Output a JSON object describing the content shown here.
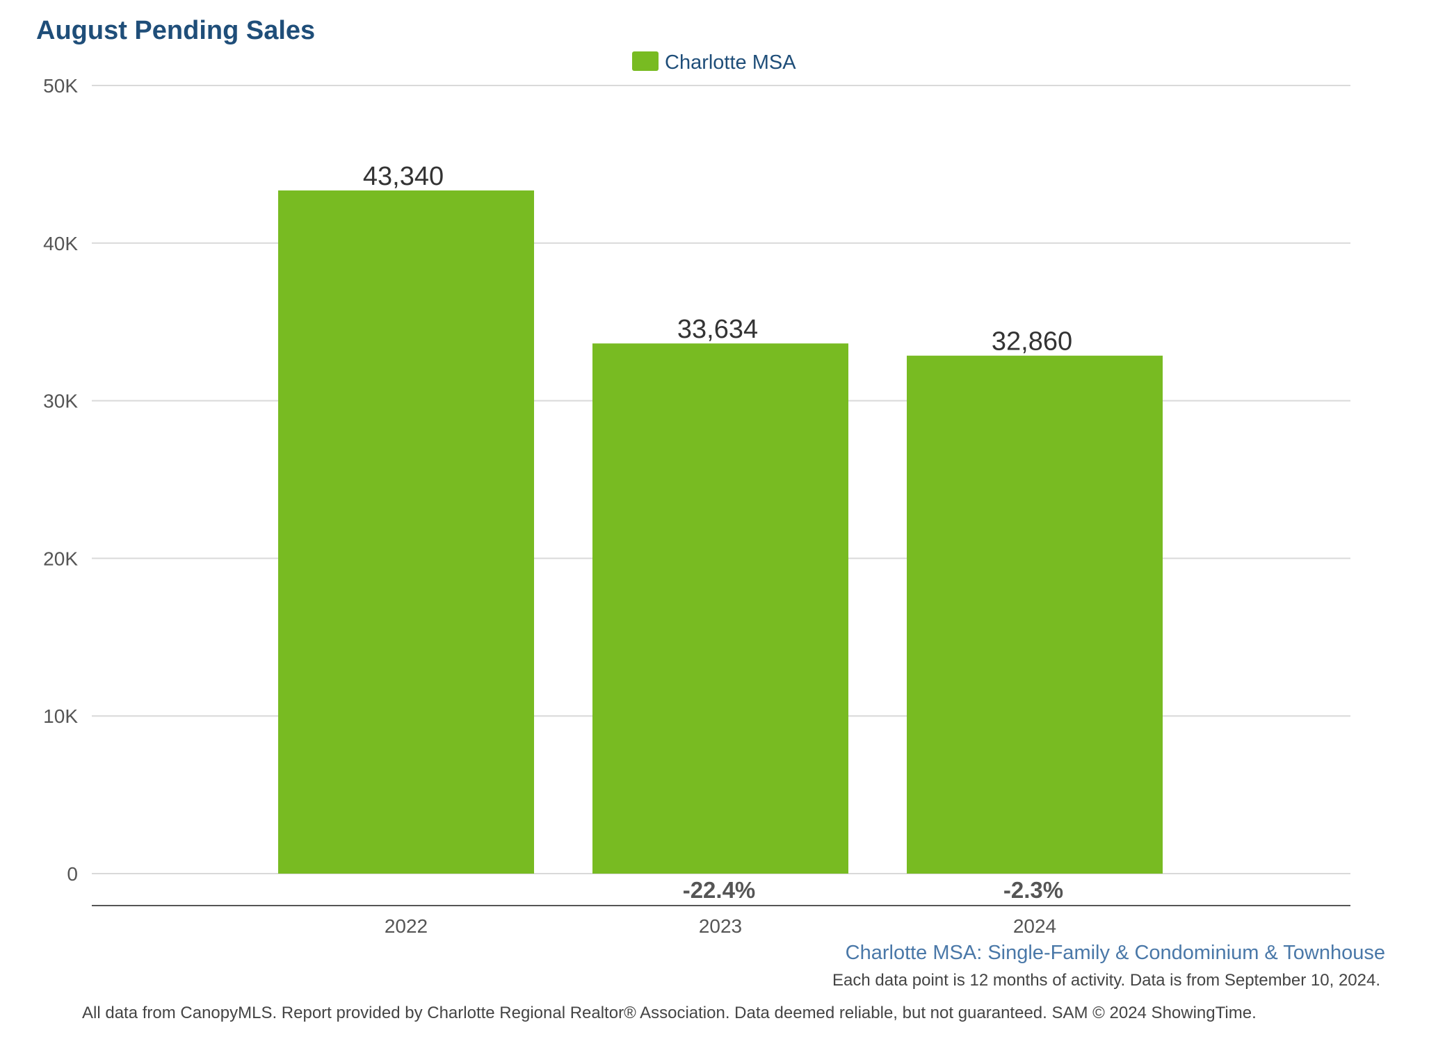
{
  "chart_data": {
    "type": "bar",
    "title": "August Pending Sales",
    "categories": [
      "2022",
      "2023",
      "2024"
    ],
    "series": [
      {
        "name": "Charlotte MSA",
        "values": [
          43340,
          33634,
          32860
        ],
        "value_labels": [
          "43,340",
          "33,634",
          "32,860"
        ],
        "color": "#78bb22"
      }
    ],
    "change_labels": [
      "",
      "-22.4%",
      "-2.3%"
    ],
    "ylim": [
      0,
      50000
    ],
    "y_ticks": [
      {
        "value": 0,
        "label": "0"
      },
      {
        "value": 10000,
        "label": "10K"
      },
      {
        "value": 20000,
        "label": "20K"
      },
      {
        "value": 30000,
        "label": "30K"
      },
      {
        "value": 40000,
        "label": "40K"
      },
      {
        "value": 50000,
        "label": "50K"
      }
    ],
    "grid": true,
    "legend_position": "top-center",
    "xlabel": "",
    "ylabel": ""
  },
  "footer": {
    "subtitle": "Charlotte MSA: Single-Family & Condominium & Townhouse",
    "note": "Each data point is 12 months of activity. Data is from September 10, 2024.",
    "disclaimer": "All data from CanopyMLS. Report provided by Charlotte Regional Realtor® Association. Data deemed reliable, but not guaranteed. SAM © 2024 ShowingTime."
  },
  "colors": {
    "title": "#1f4e79",
    "bar": "#78bb22",
    "subtitle": "#4a78a8"
  }
}
